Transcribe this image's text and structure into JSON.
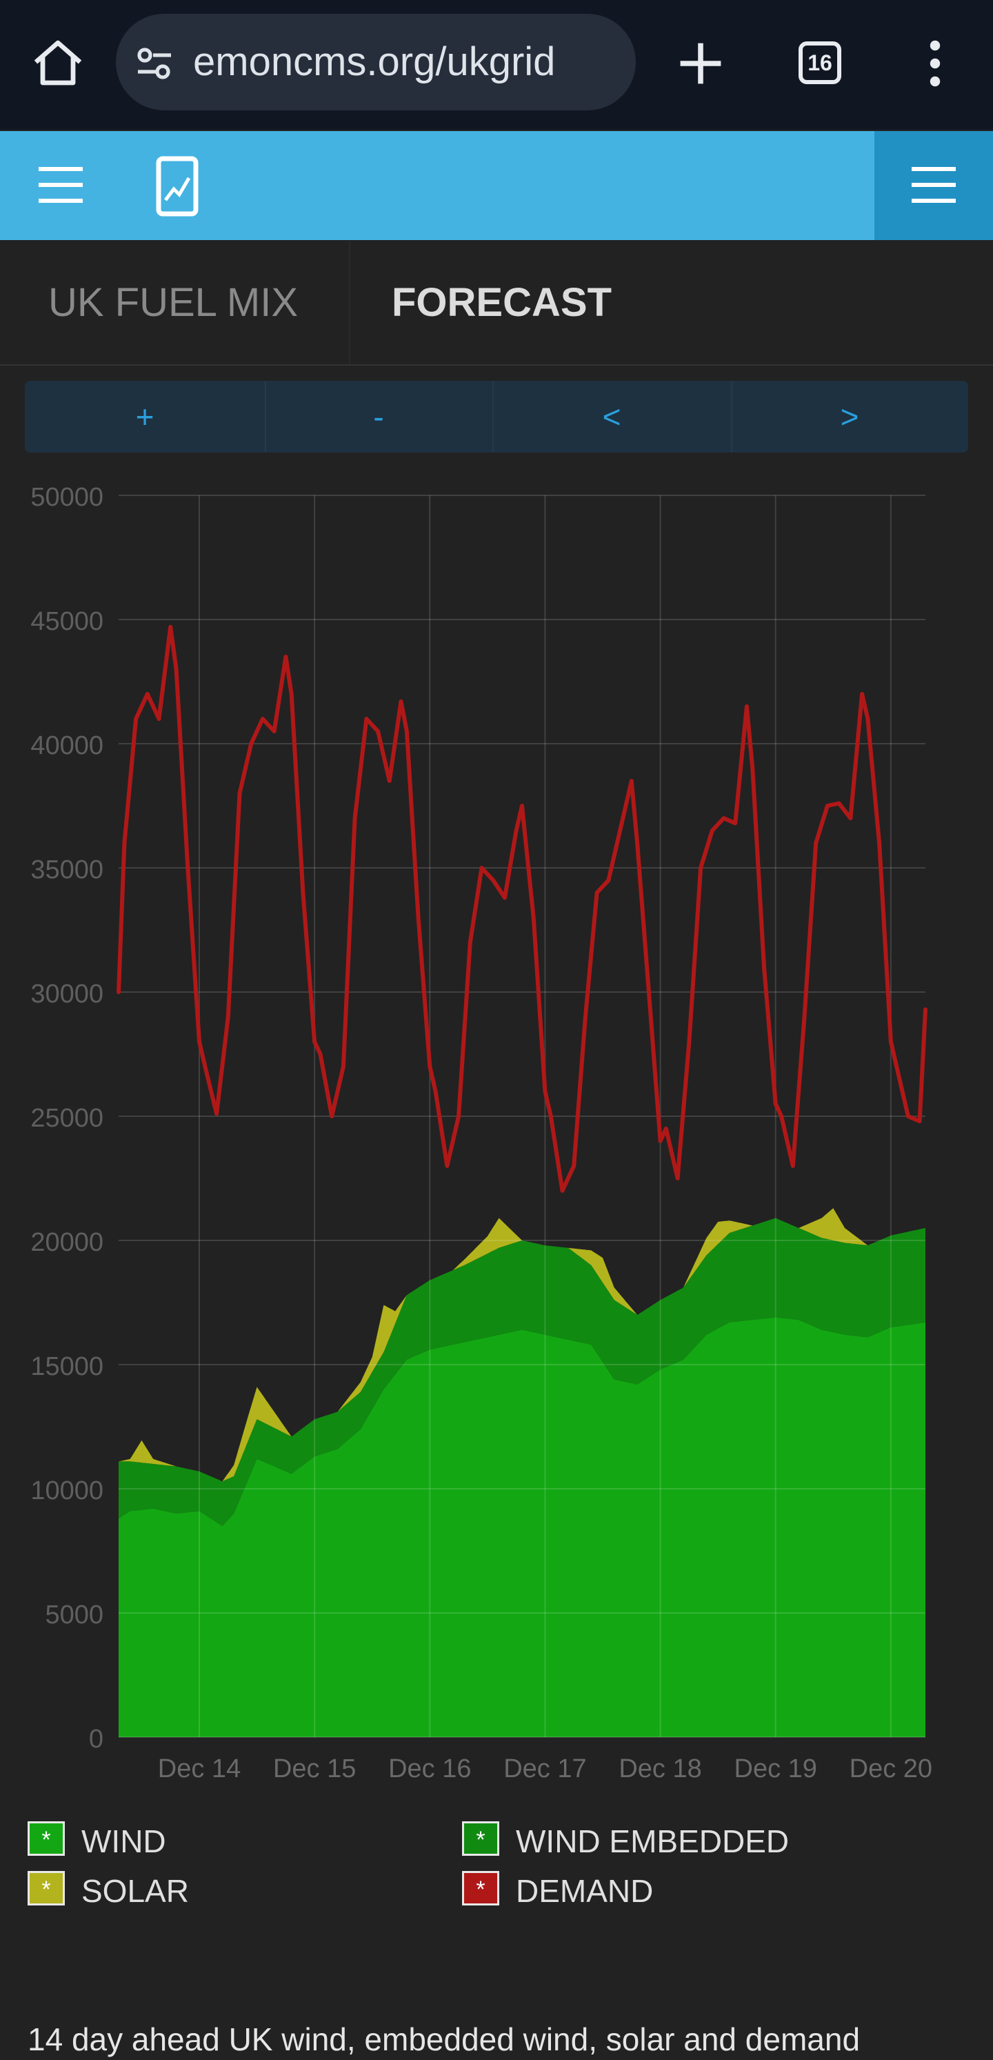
{
  "browser": {
    "url": "emoncms.org/ukgrid",
    "tab_count": "16",
    "icons": [
      "home-icon",
      "site-settings-icon",
      "plus-icon",
      "tabs-icon",
      "more-vert-icon"
    ]
  },
  "app_header": {
    "icons": [
      "hamburger-menu-icon",
      "mobile-chart-icon",
      "hamburger-menu-icon"
    ],
    "colors": {
      "bar": "#44b3e2",
      "menu_box": "#2191c4"
    }
  },
  "tabs": [
    {
      "label": "UK FUEL MIX",
      "active": false
    },
    {
      "label": "FORECAST",
      "active": true
    }
  ],
  "controls": [
    {
      "label": "+"
    },
    {
      "label": "-"
    },
    {
      "label": "<"
    },
    {
      "label": ">"
    }
  ],
  "chart_data": {
    "type": "area",
    "ylim": [
      0,
      50000
    ],
    "y_ticks": [
      "0",
      "5000",
      "10000",
      "15000",
      "20000",
      "25000",
      "30000",
      "35000",
      "40000",
      "45000",
      "50000"
    ],
    "x_ticks": [
      "Dec 14",
      "Dec 15",
      "Dec 16",
      "Dec 17",
      "Dec 18",
      "Dec 19",
      "Dec 20"
    ],
    "xlim": [
      13.3,
      20.3
    ],
    "grid": true,
    "colors": {
      "wind": "#13a813",
      "wind_embedded": "#118a11",
      "solar": "#b3b31d",
      "demand": "#b01818"
    },
    "series": [
      {
        "name": "WIND",
        "x": [
          13.3,
          13.4,
          13.6,
          13.8,
          14.0,
          14.2,
          14.3,
          14.5,
          14.8,
          15.0,
          15.2,
          15.4,
          15.6,
          15.8,
          16.0,
          16.3,
          16.6,
          16.8,
          17.0,
          17.2,
          17.4,
          17.6,
          17.8,
          18.0,
          18.2,
          18.4,
          18.6,
          18.8,
          19.0,
          19.2,
          19.4,
          19.6,
          19.8,
          20.0,
          20.3
        ],
        "values": [
          8800,
          9100,
          9200,
          9000,
          9100,
          8500,
          9000,
          11200,
          10600,
          11300,
          11600,
          12400,
          14000,
          15200,
          15600,
          15900,
          16200,
          16400,
          16200,
          16000,
          15800,
          14400,
          14200,
          14800,
          15200,
          16200,
          16700,
          16800,
          16900,
          16800,
          16400,
          16200,
          16100,
          16500,
          16700
        ]
      },
      {
        "name": "WIND EMBEDDED",
        "x": [
          13.3,
          13.4,
          13.6,
          13.8,
          14.0,
          14.2,
          14.3,
          14.5,
          14.8,
          15.0,
          15.2,
          15.4,
          15.6,
          15.8,
          16.0,
          16.3,
          16.6,
          16.8,
          17.0,
          17.2,
          17.4,
          17.6,
          17.8,
          18.0,
          18.2,
          18.4,
          18.6,
          18.8,
          19.0,
          19.2,
          19.4,
          19.6,
          19.8,
          20.0,
          20.3
        ],
        "values": [
          2300,
          2000,
          1800,
          1900,
          1600,
          1800,
          1500,
          1600,
          1500,
          1500,
          1500,
          1500,
          1500,
          2600,
          2800,
          3100,
          3500,
          3600,
          3600,
          3700,
          3200,
          3200,
          2800,
          2800,
          2900,
          3200,
          3600,
          3800,
          4000,
          3700,
          3700,
          3700,
          3700,
          3700,
          3800
        ]
      },
      {
        "name": "SOLAR",
        "x": [
          13.3,
          13.4,
          13.5,
          13.6,
          13.8,
          14.2,
          14.4,
          14.5,
          14.8,
          15.2,
          15.5,
          15.6,
          15.7,
          15.8,
          16.2,
          16.5,
          16.6,
          16.7,
          16.8,
          17.2,
          17.4,
          17.5,
          17.6,
          17.8,
          18.2,
          18.4,
          18.5,
          18.6,
          18.8,
          19.2,
          19.4,
          19.5,
          19.6,
          19.8,
          20.3
        ],
        "values": [
          0,
          100,
          900,
          200,
          0,
          0,
          900,
          1300,
          0,
          0,
          600,
          1900,
          500,
          0,
          0,
          700,
          1200,
          600,
          0,
          0,
          600,
          1000,
          500,
          0,
          0,
          700,
          900,
          500,
          0,
          0,
          800,
          1300,
          600,
          0,
          0
        ]
      },
      {
        "name": "DEMAND",
        "x": [
          13.3,
          13.35,
          13.45,
          13.55,
          13.65,
          13.75,
          13.8,
          13.9,
          14.0,
          14.05,
          14.15,
          14.25,
          14.35,
          14.45,
          14.55,
          14.65,
          14.75,
          14.8,
          14.9,
          15.0,
          15.05,
          15.15,
          15.25,
          15.35,
          15.45,
          15.55,
          15.65,
          15.75,
          15.8,
          15.9,
          16.0,
          16.05,
          16.15,
          16.25,
          16.35,
          16.45,
          16.55,
          16.65,
          16.75,
          16.8,
          16.9,
          17.0,
          17.05,
          17.15,
          17.25,
          17.35,
          17.45,
          17.55,
          17.65,
          17.75,
          17.8,
          17.9,
          18.0,
          18.05,
          18.15,
          18.25,
          18.35,
          18.45,
          18.55,
          18.65,
          18.75,
          18.8,
          18.9,
          19.0,
          19.05,
          19.15,
          19.25,
          19.35,
          19.45,
          19.55,
          19.65,
          19.75,
          19.8,
          19.9,
          20.0,
          20.05,
          20.15,
          20.25,
          20.3
        ],
        "values": [
          30000,
          36000,
          41000,
          42000,
          41000,
          44700,
          43000,
          35000,
          28000,
          27000,
          25100,
          29000,
          38000,
          40000,
          41000,
          40500,
          43500,
          42000,
          34000,
          28000,
          27500,
          25000,
          27000,
          37000,
          41000,
          40500,
          38500,
          41700,
          40500,
          33000,
          27000,
          26000,
          23000,
          25000,
          32000,
          35000,
          34500,
          33800,
          36500,
          37500,
          33000,
          26000,
          25000,
          22000,
          23000,
          29000,
          34000,
          34500,
          36500,
          38500,
          36000,
          30000,
          24000,
          24500,
          22500,
          28000,
          35000,
          36500,
          37000,
          36800,
          41500,
          39000,
          31000,
          25500,
          25000,
          23000,
          29000,
          36000,
          37500,
          37600,
          37000,
          42000,
          41000,
          36000,
          28000,
          27000,
          25000,
          24800,
          29300
        ]
      }
    ]
  },
  "legend": [
    {
      "label": "WIND",
      "color": "#13a813"
    },
    {
      "label": "WIND EMBEDDED",
      "color": "#118a11"
    },
    {
      "label": "SOLAR",
      "color": "#b3b31d"
    },
    {
      "label": "DEMAND",
      "color": "#b01818"
    }
  ],
  "legend_mark": "*",
  "description": "14 day ahead UK wind, embedded wind, solar and demand"
}
